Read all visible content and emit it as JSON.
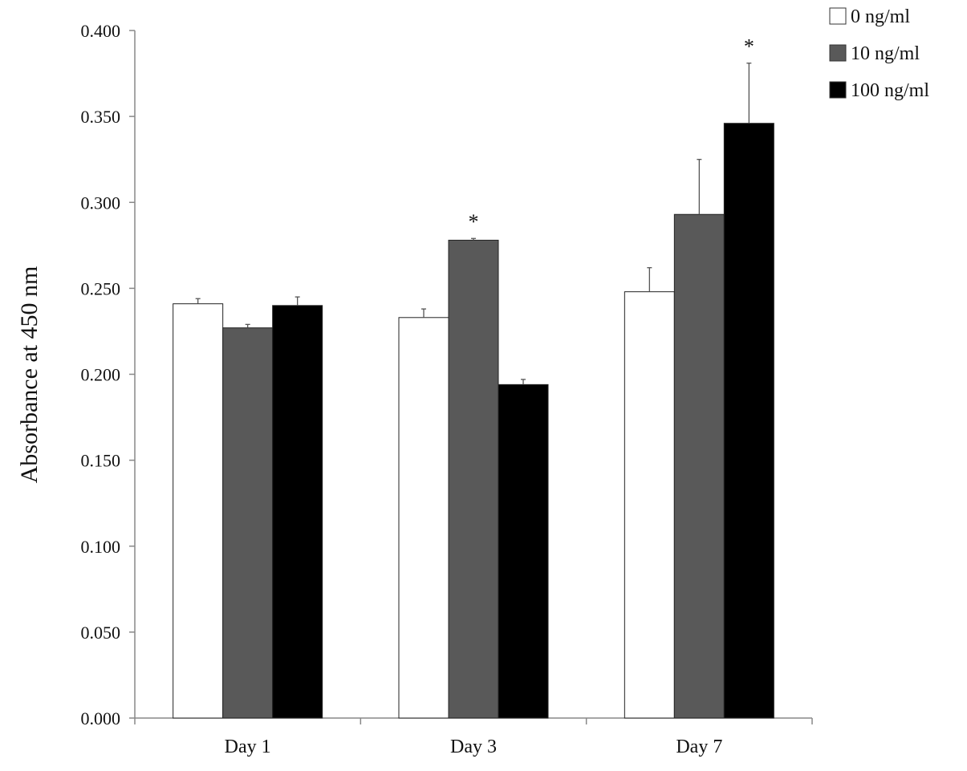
{
  "chart_data": {
    "type": "bar",
    "categories": [
      "Day 1",
      "Day 3",
      "Day 7"
    ],
    "series": [
      {
        "name": "0 ng/ml",
        "color": "#ffffff",
        "values": [
          0.241,
          0.233,
          0.248
        ],
        "errors": [
          0.003,
          0.005,
          0.014
        ]
      },
      {
        "name": "10 ng/ml",
        "color": "#595959",
        "values": [
          0.227,
          0.278,
          0.293
        ],
        "errors": [
          0.002,
          0.001,
          0.032
        ]
      },
      {
        "name": "100 ng/ml",
        "color": "#000000",
        "values": [
          0.24,
          0.194,
          0.346
        ],
        "errors": [
          0.005,
          0.003,
          0.035
        ]
      }
    ],
    "significance": [
      {
        "category": 1,
        "series": 1,
        "label": "*"
      },
      {
        "category": 2,
        "series": 2,
        "label": "*"
      }
    ],
    "title": "",
    "xlabel": "",
    "ylabel": "Absorbance at 450 nm",
    "ylim": [
      0,
      0.4
    ],
    "yticks": [
      "0.000",
      "0.050",
      "0.100",
      "0.150",
      "0.200",
      "0.250",
      "0.300",
      "0.350",
      "0.400"
    ],
    "grid": false,
    "legend_position": "top-right"
  }
}
